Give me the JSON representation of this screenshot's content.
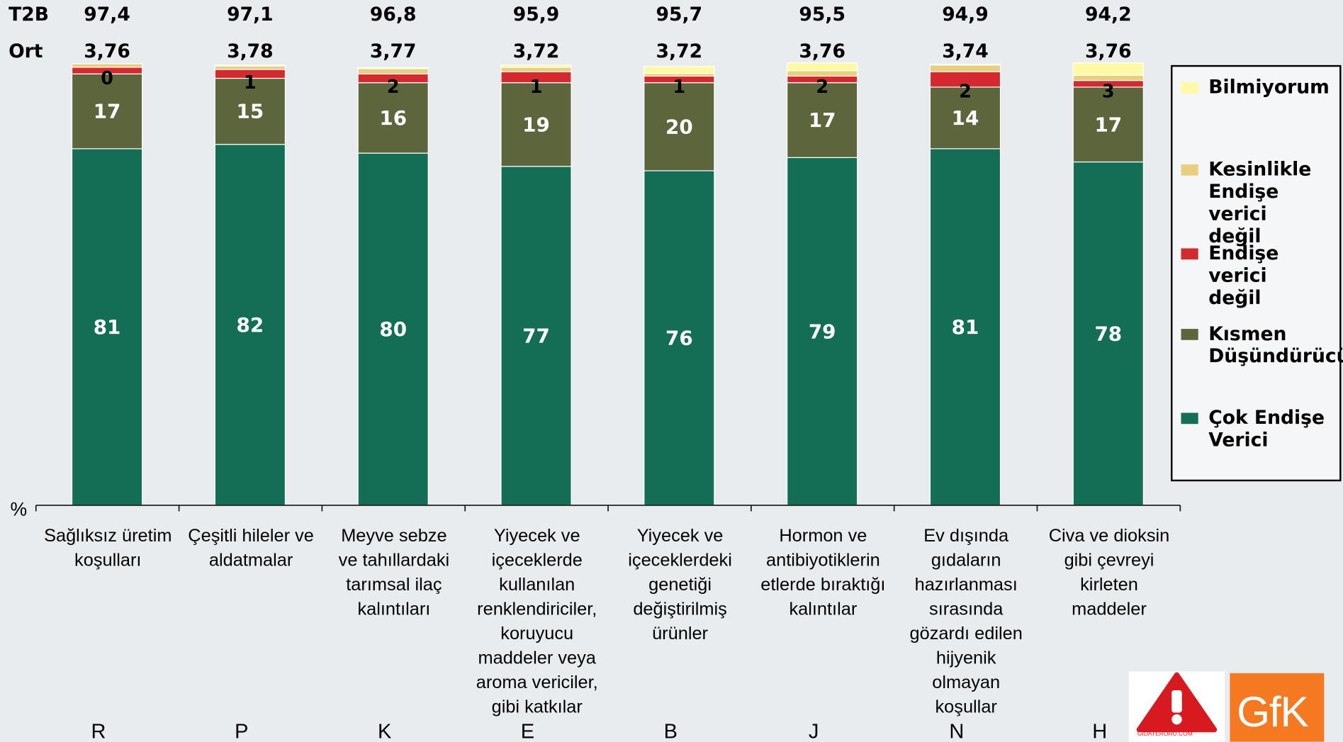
{
  "row_labels": {
    "t2b": "T2B",
    "ort": "Ort"
  },
  "percent_sign": "%",
  "legend": [
    {
      "label": "Bilmiyorum",
      "color": "#fef9a4"
    },
    {
      "label": "Kesinlikle\nEndişe verici\ndeğil",
      "color": "#e8cf7e"
    },
    {
      "label": "Endişe verici\ndeğil",
      "color": "#d42a2f"
    },
    {
      "label": "Kısmen\nDüşündürücü",
      "color": "#5c653c"
    },
    {
      "label": "Çok Endişe\nVerici",
      "color": "#146e55"
    }
  ],
  "logos": {
    "gida_caption": "GIDATERORU.COM",
    "gfk": "GfK"
  },
  "chart_data": {
    "type": "bar",
    "stacked": true,
    "categories": [
      [
        "Sağlıksız üretim",
        "koşulları"
      ],
      [
        "Çeşitli hileler ve",
        "aldatmalar"
      ],
      [
        "Meyve  sebze",
        "ve tahıllardaki",
        "tarımsal ilaç",
        "kalıntıları"
      ],
      [
        "Yiyecek ve",
        "içeceklerde",
        "kullanılan",
        "renklendiriciler,",
        "koruyucu",
        "maddeler veya",
        "aroma vericiler,",
        "gibi katkılar"
      ],
      [
        "Yiyecek ve",
        "içeceklerdeki",
        "genetiği",
        "değiştirilmiş",
        "ürünler"
      ],
      [
        "Hormon ve",
        "antibiyotiklerin",
        "etlerde bıraktığı",
        "kalıntılar"
      ],
      [
        "Ev dışında",
        "gıdaların",
        "hazırlanması",
        "sırasında",
        "gözardı edilen",
        "hijyenik",
        "olmayan",
        "koşullar"
      ],
      [
        "Civa ve dioksin",
        "gibi çevreyi",
        "kirleten",
        "maddeler"
      ]
    ],
    "letters": [
      "R",
      "P",
      "K",
      "E",
      "B",
      "J",
      "N",
      "H"
    ],
    "t2b": [
      "97,4",
      "97,1",
      "96,8",
      "95,9",
      "95,7",
      "95,5",
      "94,9",
      "94,2"
    ],
    "ort": [
      "3,76",
      "3,78",
      "3,77",
      "3,72",
      "3,72",
      "3,76",
      "3,74",
      "3,76"
    ],
    "series": [
      {
        "name": "Çok Endişe Verici",
        "values": [
          81,
          82,
          80,
          77,
          76,
          79,
          81,
          78
        ]
      },
      {
        "name": "Kısmen Düşündürücü",
        "values": [
          17,
          15,
          16,
          19,
          20,
          17,
          14,
          17
        ]
      },
      {
        "name": "Endişe verici değil",
        "values": [
          1.5,
          2,
          2,
          2.5,
          1.5,
          1.5,
          3.5,
          1.5
        ]
      },
      {
        "name": "Kesinlikle Endişe verici değil",
        "values": [
          0.8,
          0.8,
          1.2,
          1,
          0.6,
          1.2,
          1.5,
          1.2
        ]
      },
      {
        "name": "Bilmiyorum",
        "values": [
          0,
          0.2,
          0.2,
          0.5,
          1.6,
          1.8,
          0.2,
          2.8
        ]
      }
    ],
    "visible_labels": {
      "Çok Endişe Verici": [
        "81",
        "82",
        "80",
        "77",
        "76",
        "79",
        "81",
        "78"
      ],
      "Kısmen Düşündürücü": [
        "17",
        "15",
        "16",
        "19",
        "20",
        "17",
        "14",
        "17"
      ],
      "small": [
        "0",
        "1",
        "2",
        "1",
        "1",
        "2",
        "2",
        "3"
      ]
    },
    "ylim": [
      0,
      100
    ],
    "xlabel": "",
    "ylabel": "%",
    "legend_position": "right"
  }
}
